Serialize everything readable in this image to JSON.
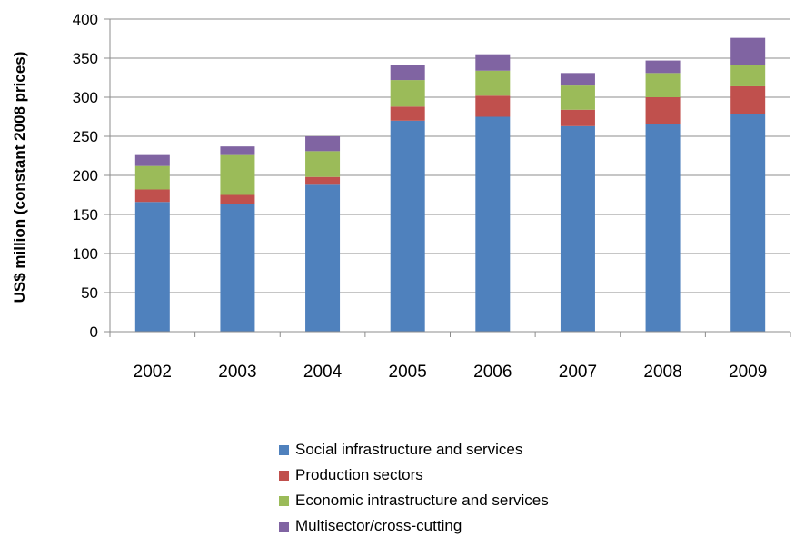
{
  "chart_data": {
    "type": "bar",
    "stacked": true,
    "title": "",
    "xlabel": "",
    "ylabel": "US$ million (constant 2008 prices)",
    "ylim": [
      0,
      400
    ],
    "yticks": [
      0,
      50,
      100,
      150,
      200,
      250,
      300,
      350,
      400
    ],
    "grid": true,
    "legend_position": "bottom",
    "categories": [
      "2002",
      "2003",
      "2004",
      "2005",
      "2006",
      "2007",
      "2008",
      "2009"
    ],
    "series": [
      {
        "name": "Social infrastructure and services",
        "color": "#4F81BD",
        "values": [
          166,
          163,
          188,
          270,
          275,
          263,
          266,
          279
        ]
      },
      {
        "name": "Production sectors",
        "color": "#C0504D",
        "values": [
          16,
          12,
          10,
          18,
          27,
          21,
          34,
          35
        ]
      },
      {
        "name": "Economic intrastructure and services",
        "color": "#9BBB59",
        "values": [
          30,
          51,
          33,
          34,
          32,
          31,
          31,
          27
        ]
      },
      {
        "name": "Multisector/cross-cutting",
        "color": "#8064A2",
        "values": [
          14,
          11,
          19,
          19,
          21,
          16,
          16,
          35
        ]
      }
    ]
  }
}
